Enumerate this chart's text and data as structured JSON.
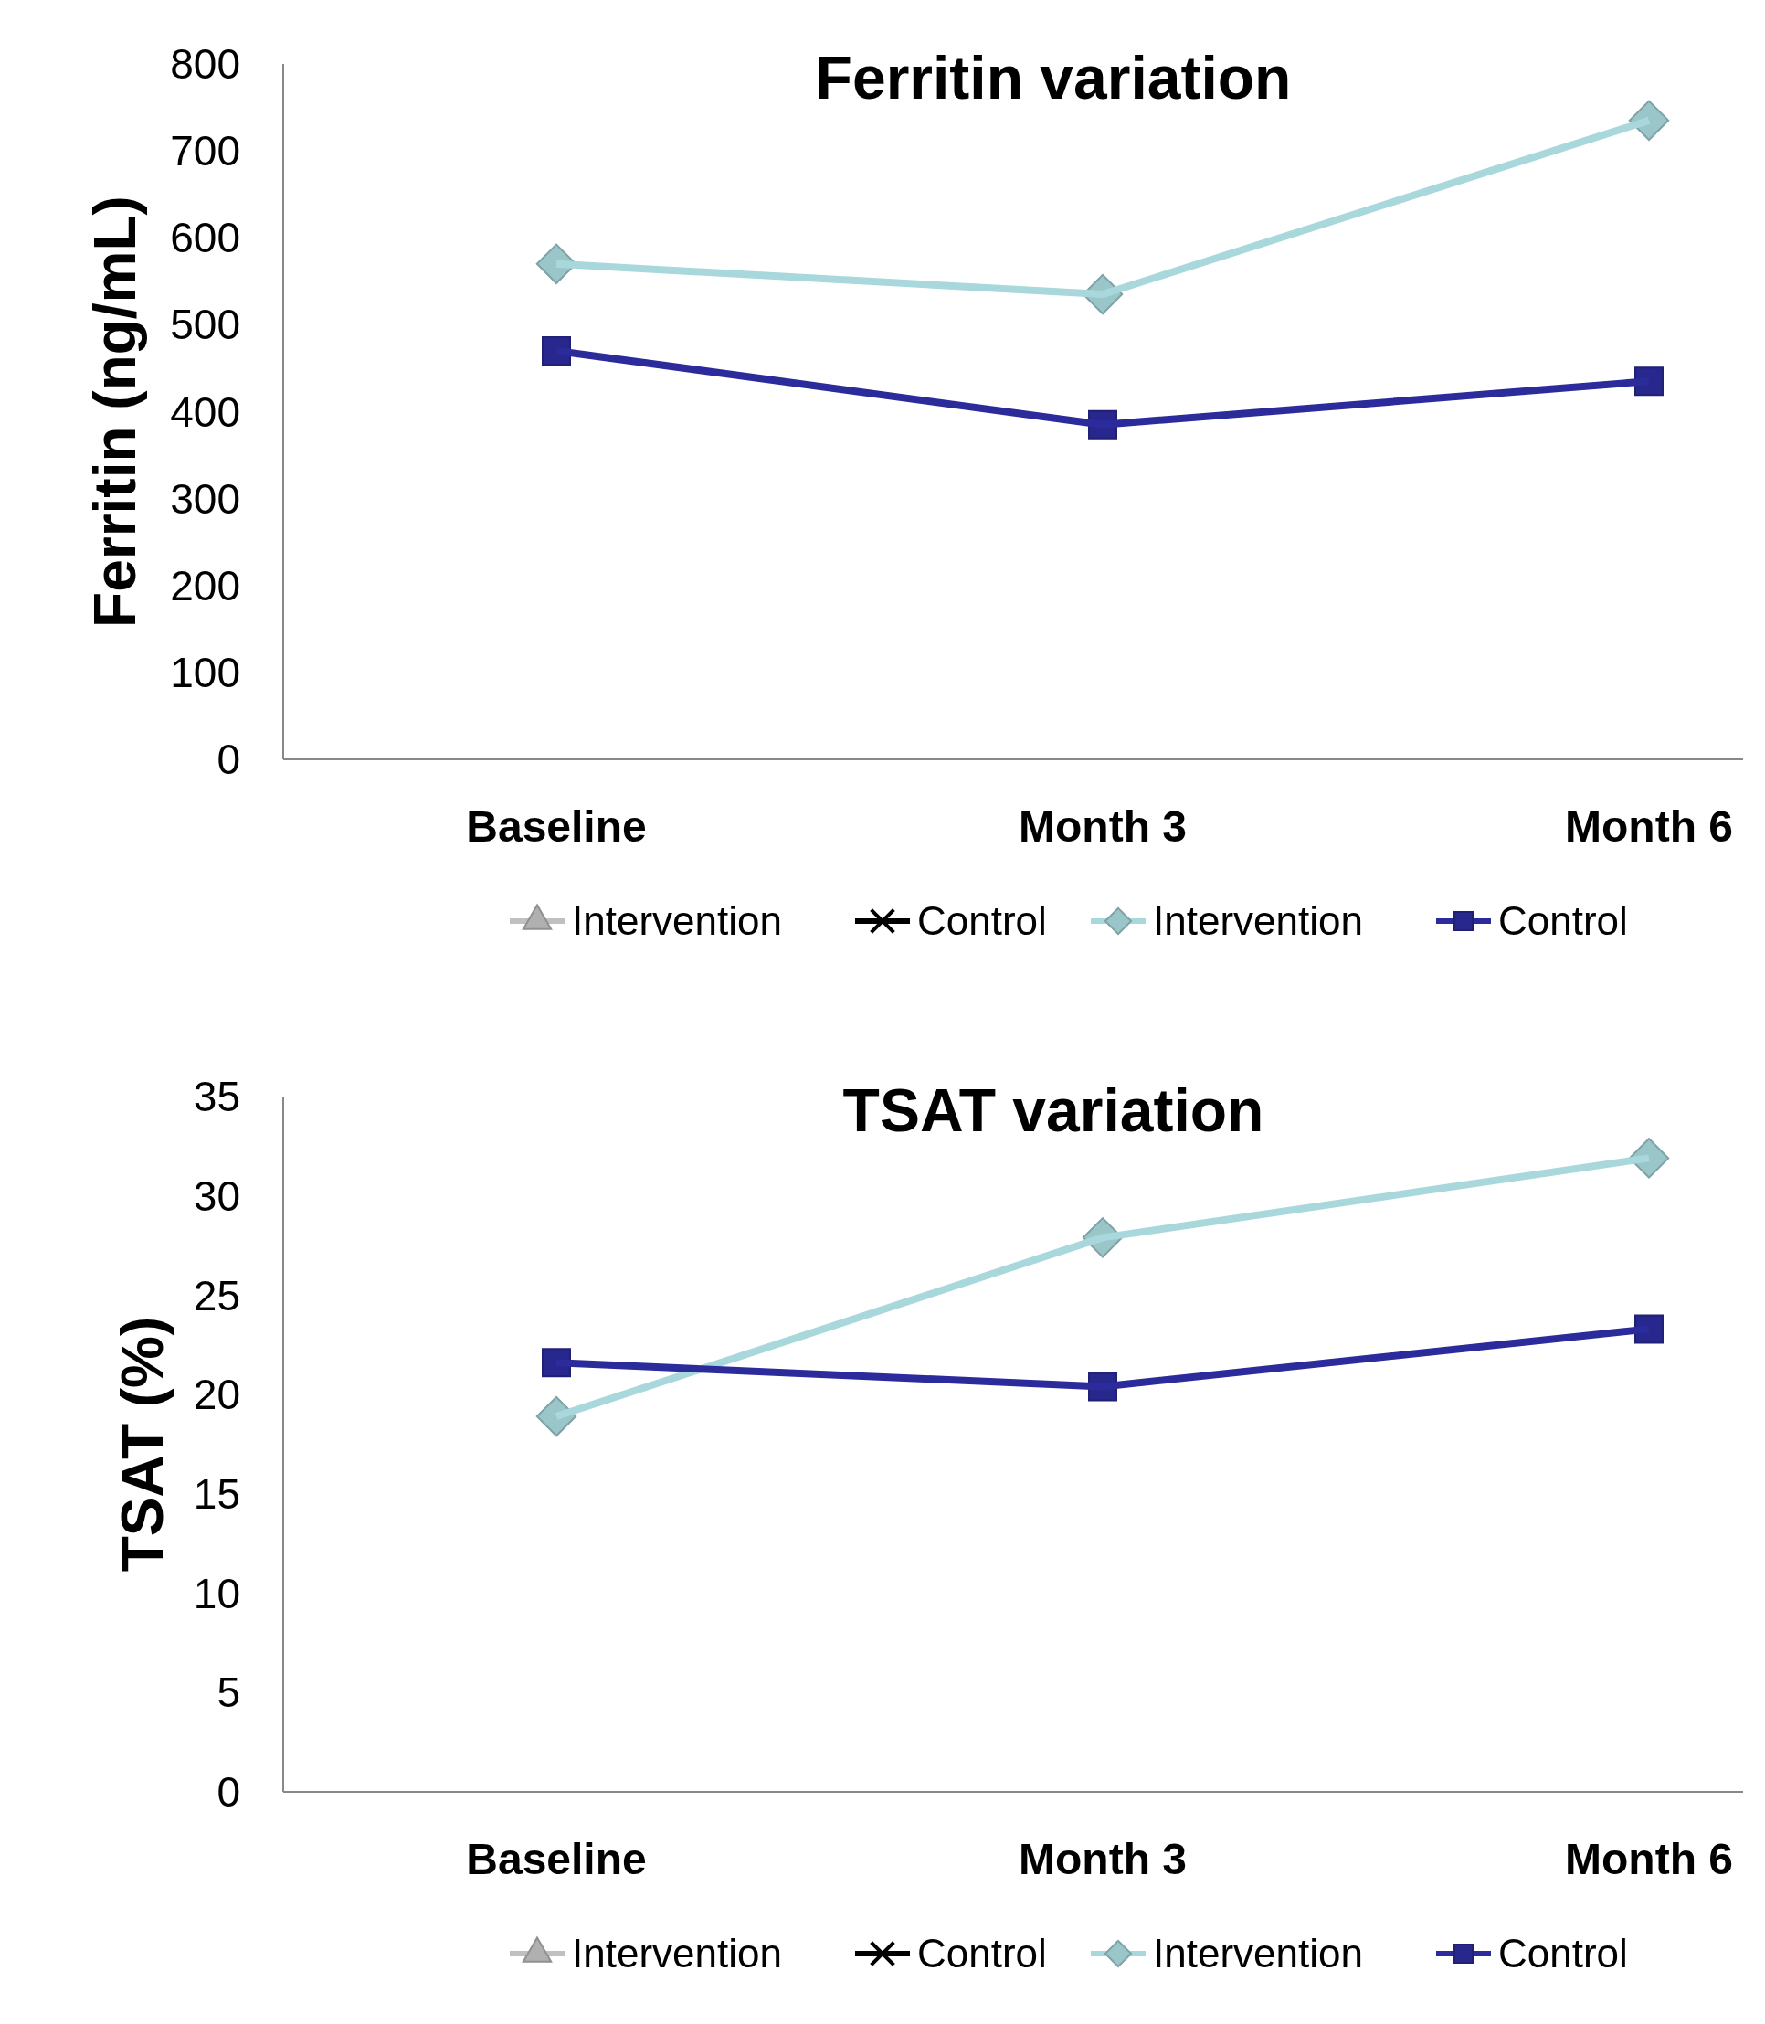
{
  "chart_data": [
    {
      "type": "line",
      "title": "Ferritin variation",
      "ylabel": "Ferritin (ng/mL)",
      "categories": [
        "Baseline",
        "Month 3",
        "Month 6"
      ],
      "ylim": [
        0,
        800
      ],
      "yticks": [
        0,
        100,
        200,
        300,
        400,
        500,
        600,
        700,
        800
      ],
      "legend": "bottom",
      "grid": false,
      "series": [
        {
          "name": "Intervention",
          "color": "#c0c0c0",
          "marker": "triangle",
          "values": [
            null,
            null,
            null
          ]
        },
        {
          "name": "Control",
          "color": "#000000",
          "marker": "cross",
          "values": [
            null,
            null,
            null
          ]
        },
        {
          "name": "Intervention",
          "color": "#a8d8dc",
          "marker": "diamond",
          "values": [
            570,
            535,
            735
          ]
        },
        {
          "name": "Control",
          "color": "#2b2b9b",
          "marker": "square",
          "values": [
            470,
            385,
            435
          ]
        }
      ]
    },
    {
      "type": "line",
      "title": "TSAT variation",
      "ylabel": "TSAT (%)",
      "categories": [
        "Baseline",
        "Month 3",
        "Month 6"
      ],
      "ylim": [
        0,
        35
      ],
      "yticks": [
        0,
        5,
        10,
        15,
        20,
        25,
        30,
        35
      ],
      "legend": "bottom",
      "grid": false,
      "series": [
        {
          "name": "Intervention",
          "color": "#c0c0c0",
          "marker": "triangle",
          "values": [
            null,
            null,
            null
          ]
        },
        {
          "name": "Control",
          "color": "#000000",
          "marker": "cross",
          "values": [
            null,
            null,
            null
          ]
        },
        {
          "name": "Intervention",
          "color": "#a8d8dc",
          "marker": "diamond",
          "values": [
            18.9,
            27.9,
            31.9
          ]
        },
        {
          "name": "Control",
          "color": "#2b2b9b",
          "marker": "square",
          "values": [
            21.6,
            20.4,
            23.3
          ]
        }
      ]
    }
  ]
}
